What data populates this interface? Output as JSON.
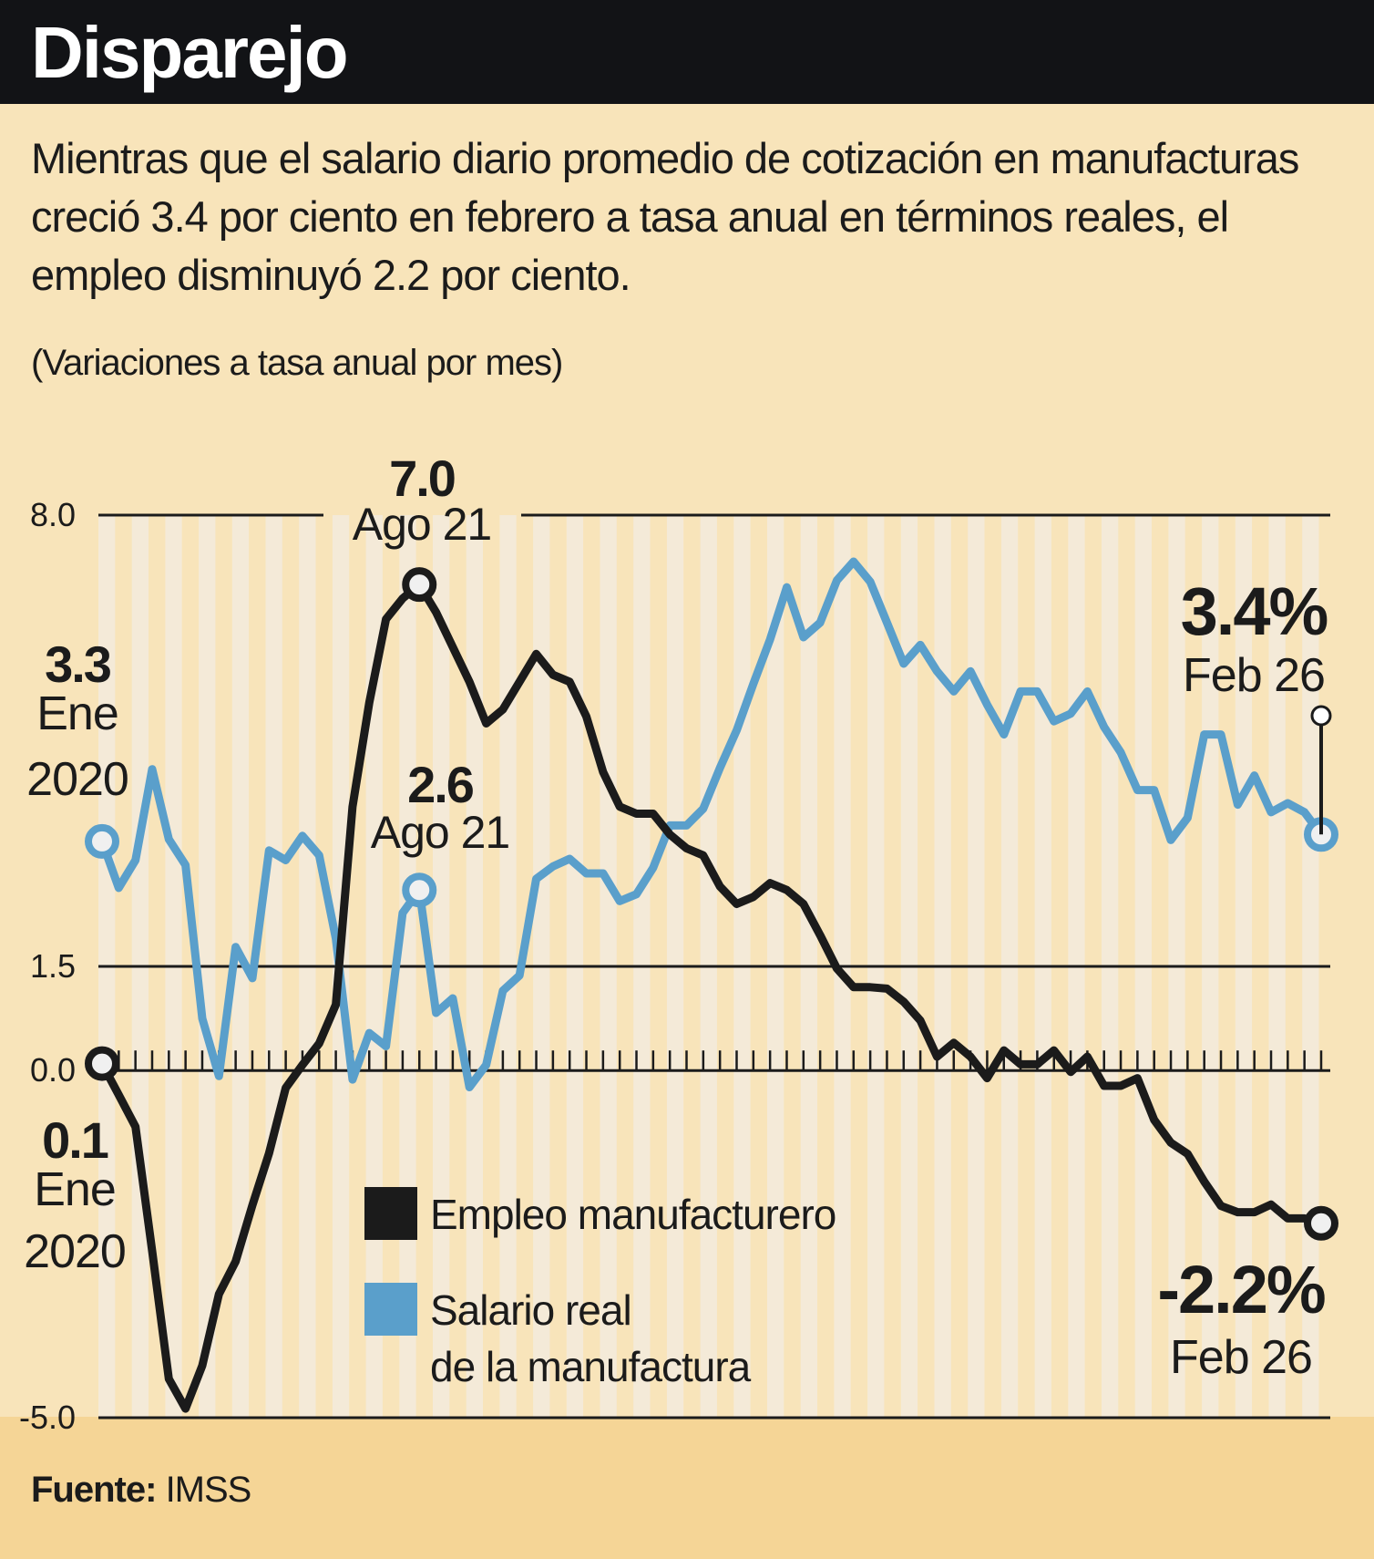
{
  "header": {
    "title": "Disparejo"
  },
  "subtitle": "Mientras que el salario diario promedio de cotización en manufacturas creció 3.4 por ciento en febrero a tasa anual en términos reales, el empleo disminuyó 2.2 por ciento.",
  "units_note": "(Variaciones a tasa anual por mes)",
  "footer": {
    "source_label": "Fuente:",
    "source_value": "IMSS"
  },
  "colors": {
    "header_bg": "#121316",
    "background": "#F8E4BA",
    "stripe": "#F4EAD8",
    "footer_bg": "#F5D596",
    "employment": "#1b1b1b",
    "salary": "#5A9FCB",
    "marker_fill": "#F0F0F0"
  },
  "chart_data": {
    "type": "line",
    "title": "Disparejo",
    "xlabel": "",
    "ylabel": "(Variaciones a tasa anual por mes)",
    "ylim": [
      -5.0,
      8.0
    ],
    "y_ticks": [
      8.0,
      1.5,
      0.0,
      -5.0
    ],
    "y_tick_labels": [
      "8.0",
      "1.5",
      "0.0",
      "-5.0"
    ],
    "x_start": "Ene 2020",
    "x_end": "Feb 2026",
    "x_frequency": "monthly",
    "grid": "horizontal lines at tick values",
    "legend_position": "bottom-center",
    "series": [
      {
        "name": "Empleo manufacturero",
        "color": "#1b1b1b",
        "values": [
          0.1,
          -0.35,
          -0.81,
          -2.6,
          -4.44,
          -4.87,
          -4.25,
          -3.22,
          -2.75,
          -1.94,
          -1.19,
          -0.25,
          0.08,
          0.39,
          0.95,
          3.8,
          5.3,
          6.5,
          6.8,
          7.0,
          6.6,
          6.1,
          5.6,
          5.0,
          5.2,
          5.6,
          6.0,
          5.7,
          5.6,
          5.1,
          4.3,
          3.8,
          3.7,
          3.7,
          3.4,
          3.2,
          3.1,
          2.65,
          2.4,
          2.5,
          2.7,
          2.6,
          2.4,
          1.95,
          1.47,
          1.2,
          1.2,
          1.18,
          0.99,
          0.72,
          0.2,
          0.4,
          0.2,
          -0.11,
          0.29,
          0.09,
          0.09,
          0.29,
          -0.02,
          0.2,
          -0.22,
          -0.22,
          -0.11,
          -0.71,
          -1.04,
          -1.2,
          -1.6,
          -1.95,
          -2.04,
          -2.04,
          -1.93,
          -2.13,
          -2.13,
          -2.2
        ]
      },
      {
        "name": "Salario real de la manufactura",
        "color": "#5A9FCB",
        "values": [
          3.3,
          2.63,
          3.03,
          4.34,
          3.33,
          2.96,
          0.75,
          -0.08,
          1.78,
          1.33,
          3.17,
          3.03,
          3.38,
          3.1,
          1.9,
          -0.13,
          0.54,
          0.35,
          2.27,
          2.6,
          0.83,
          1.04,
          -0.24,
          0.08,
          1.15,
          1.37,
          2.76,
          2.94,
          3.05,
          2.84,
          2.84,
          2.44,
          2.54,
          2.92,
          3.53,
          3.53,
          3.77,
          4.36,
          4.9,
          5.57,
          6.21,
          6.96,
          6.24,
          6.45,
          7.06,
          7.33,
          7.04,
          6.45,
          5.86,
          6.13,
          5.75,
          5.46,
          5.75,
          5.27,
          4.84,
          5.46,
          5.46,
          5.03,
          5.14,
          5.46,
          4.95,
          4.58,
          4.04,
          4.04,
          3.32,
          3.64,
          4.84,
          4.84,
          3.83,
          4.25,
          3.72,
          3.85,
          3.72,
          3.4
        ]
      }
    ],
    "annotations": [
      {
        "id": "emp-start",
        "series": 0,
        "index": 0,
        "value_label": "0.1",
        "date_label": [
          "Ene",
          "2020"
        ]
      },
      {
        "id": "emp-peak",
        "series": 0,
        "index": 19,
        "value_label": "7.0",
        "date_label": [
          "Ago 21"
        ]
      },
      {
        "id": "emp-end",
        "series": 0,
        "index": 73,
        "value_label": "-2.2%",
        "date_label": [
          "Feb 26"
        ]
      },
      {
        "id": "sal-start",
        "series": 1,
        "index": 0,
        "value_label": "3.3",
        "date_label": [
          "Ene",
          "2020"
        ]
      },
      {
        "id": "sal-aug21",
        "series": 1,
        "index": 19,
        "value_label": "2.6",
        "date_label": [
          "Ago 21"
        ]
      },
      {
        "id": "sal-end",
        "series": 1,
        "index": 73,
        "value_label": "3.4%",
        "date_label": [
          "Feb 26"
        ]
      }
    ],
    "legend": [
      {
        "label_lines": [
          "Empleo manufacturero"
        ],
        "color": "#1b1b1b"
      },
      {
        "label_lines": [
          "Salario real",
          "de la manufactura"
        ],
        "color": "#5A9FCB"
      }
    ]
  }
}
